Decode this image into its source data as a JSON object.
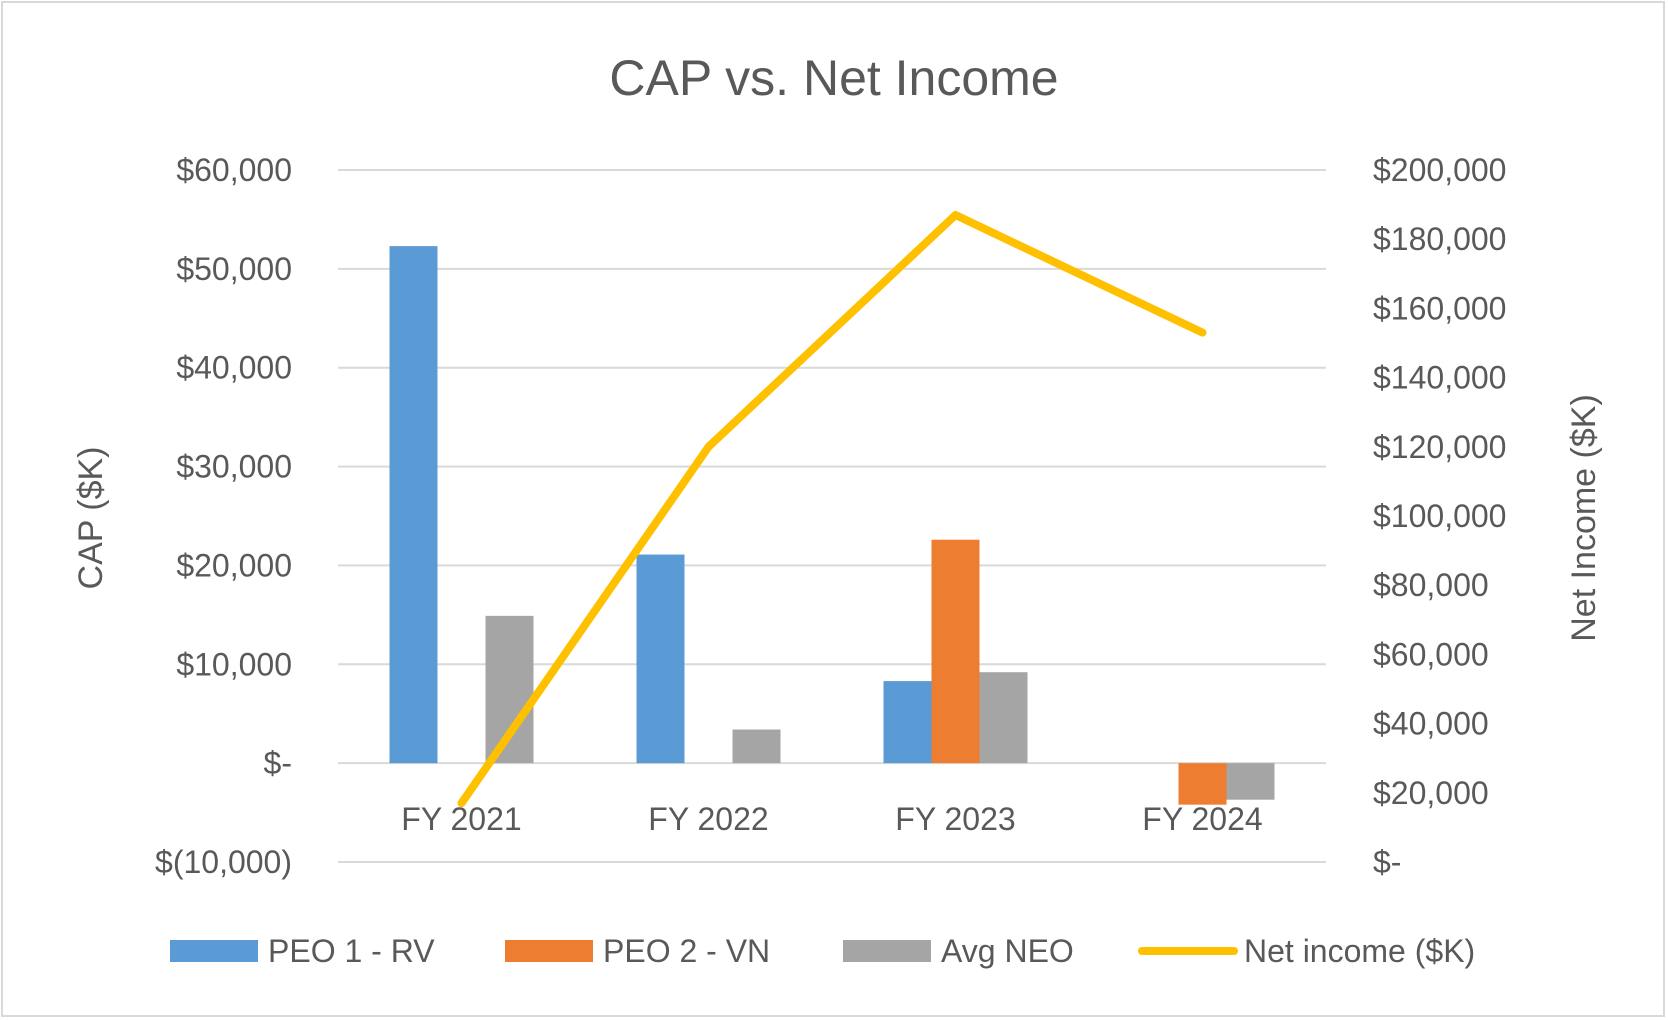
{
  "chart_data": {
    "type": "bar+line",
    "title": "CAP vs. Net Income",
    "categories": [
      "FY 2021",
      "FY 2022",
      "FY 2023",
      "FY 2024"
    ],
    "y_left": {
      "label": "CAP ($K)",
      "lim": [
        -10000,
        60000
      ],
      "ticks": [
        60000,
        50000,
        40000,
        30000,
        20000,
        10000,
        0,
        -10000
      ],
      "tick_labels": [
        "$60,000",
        "$50,000",
        "$40,000",
        "$30,000",
        "$20,000",
        "$10,000",
        "$-",
        "$(10,000)"
      ]
    },
    "y_right": {
      "label": "Net Income ($K)",
      "lim": [
        0,
        200000
      ],
      "ticks": [
        200000,
        180000,
        160000,
        140000,
        120000,
        100000,
        80000,
        60000,
        40000,
        20000,
        0
      ],
      "tick_labels": [
        "$200,000",
        "$180,000",
        "$160,000",
        "$140,000",
        "$120,000",
        "$100,000",
        "$80,000",
        "$60,000",
        "$40,000",
        "$20,000",
        "$-"
      ]
    },
    "series": [
      {
        "name": "PEO 1 - RV",
        "type": "bar",
        "axis": "left",
        "color": "#5b9bd5",
        "values": [
          52300,
          21100,
          8300,
          null
        ]
      },
      {
        "name": "PEO 2 - VN",
        "type": "bar",
        "axis": "left",
        "color": "#ed7d31",
        "values": [
          null,
          null,
          22600,
          -4200
        ]
      },
      {
        "name": "Avg NEO",
        "type": "bar",
        "axis": "left",
        "color": "#a5a5a5",
        "values": [
          14900,
          3400,
          9200,
          -3700
        ]
      },
      {
        "name": "Net income ($K)",
        "type": "line",
        "axis": "right",
        "color": "#ffc000",
        "values": [
          17000,
          120000,
          187000,
          153000
        ]
      }
    ],
    "grid": true,
    "legend_position": "bottom"
  }
}
